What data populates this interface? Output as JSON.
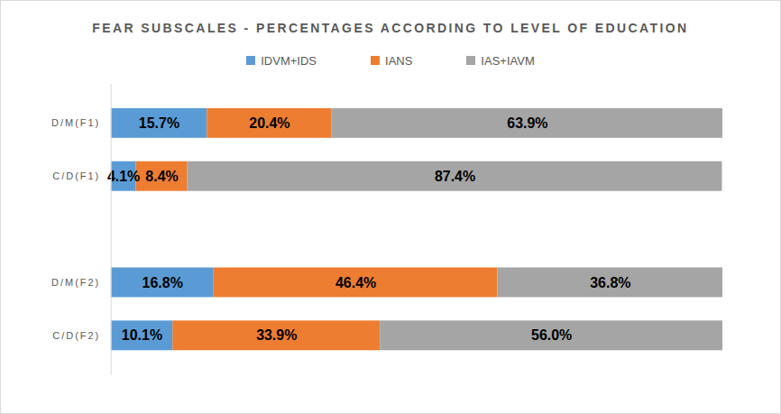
{
  "chart_data": {
    "type": "bar",
    "orientation": "horizontal",
    "stacked": true,
    "title": "FEAR SUBSCALES - PERCENTAGES ACCORDING TO LEVEL OF EDUCATION",
    "categories": [
      "D/M(F1)",
      "C/D(F1)",
      null,
      "D/M(F2)",
      "C/D(F2)"
    ],
    "series": [
      {
        "name": "IDVM+IDS",
        "color": "#5b9bd5",
        "values": [
          15.7,
          4.1,
          null,
          16.8,
          10.1
        ],
        "value_labels": [
          "15.7%",
          "4.1%",
          null,
          "16.8%",
          "10.1%"
        ]
      },
      {
        "name": "IANS",
        "color": "#ed7d31",
        "values": [
          20.4,
          8.4,
          null,
          46.4,
          33.9
        ],
        "value_labels": [
          "20.4%",
          "8.4%",
          null,
          "46.4%",
          "33.9%"
        ]
      },
      {
        "name": "IAS+IAVM",
        "color": "#a5a5a5",
        "values": [
          63.9,
          87.4,
          null,
          36.8,
          56.0
        ],
        "value_labels": [
          "63.9%",
          "87.4%",
          null,
          "36.8%",
          "56.0%"
        ]
      }
    ],
    "xlim": [
      0,
      100
    ],
    "data_labels": true,
    "tick_labels": "y",
    "legend": "top"
  }
}
